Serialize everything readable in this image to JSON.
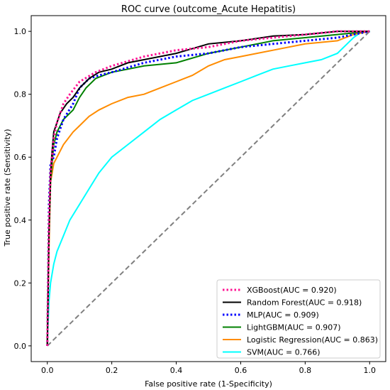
{
  "chart_data": {
    "type": "line",
    "title": "ROC curve (outcome_Acute Hepatitis)",
    "xlabel": "False positive rate (1-Specificity)",
    "ylabel": "True positive rate (Sensitivity)",
    "xlim": [
      -0.05,
      1.05
    ],
    "ylim": [
      -0.05,
      1.05
    ],
    "xticks": [
      "0.0",
      "0.2",
      "0.4",
      "0.6",
      "0.8",
      "1.0"
    ],
    "yticks": [
      "0.0",
      "0.2",
      "0.4",
      "0.6",
      "0.8",
      "1.0"
    ],
    "legend_position": "lower-right",
    "diagonal": {
      "x": [
        0,
        1
      ],
      "y": [
        0,
        1
      ],
      "color": "#808080",
      "style": "dashed"
    },
    "series": [
      {
        "name": "XGBoost(AUC = 0.920)",
        "color": "#ff1493",
        "style": "dotted",
        "x": [
          0,
          0.005,
          0.01,
          0.015,
          0.02,
          0.03,
          0.04,
          0.05,
          0.07,
          0.1,
          0.15,
          0.2,
          0.3,
          0.4,
          0.5,
          0.6,
          0.7,
          0.8,
          0.9,
          1.0
        ],
        "y": [
          0,
          0.4,
          0.55,
          0.6,
          0.66,
          0.71,
          0.74,
          0.77,
          0.8,
          0.84,
          0.87,
          0.89,
          0.92,
          0.94,
          0.95,
          0.97,
          0.98,
          0.99,
          1.0,
          1.0
        ]
      },
      {
        "name": "Random Forest(AUC = 0.918)",
        "color": "#000000",
        "style": "solid",
        "x": [
          0,
          0.005,
          0.01,
          0.015,
          0.02,
          0.03,
          0.04,
          0.06,
          0.08,
          0.1,
          0.13,
          0.16,
          0.2,
          0.25,
          0.3,
          0.4,
          0.5,
          0.6,
          0.7,
          0.8,
          0.9,
          1.0
        ],
        "y": [
          0,
          0.35,
          0.55,
          0.62,
          0.68,
          0.71,
          0.74,
          0.77,
          0.79,
          0.82,
          0.85,
          0.87,
          0.88,
          0.9,
          0.91,
          0.93,
          0.96,
          0.97,
          0.985,
          0.99,
          1.0,
          1.0
        ]
      },
      {
        "name": "MLP(AUC = 0.909)",
        "color": "#0000ff",
        "style": "dotted",
        "x": [
          0,
          0.005,
          0.01,
          0.02,
          0.03,
          0.05,
          0.08,
          0.1,
          0.13,
          0.16,
          0.2,
          0.3,
          0.4,
          0.5,
          0.6,
          0.7,
          0.8,
          0.9,
          0.95,
          1.0
        ],
        "y": [
          0,
          0.45,
          0.58,
          0.6,
          0.66,
          0.72,
          0.77,
          0.82,
          0.85,
          0.86,
          0.87,
          0.9,
          0.92,
          0.93,
          0.95,
          0.96,
          0.97,
          0.98,
          0.99,
          1.0
        ]
      },
      {
        "name": "LightGBM(AUC = 0.907)",
        "color": "#008000",
        "style": "solid",
        "x": [
          0,
          0.005,
          0.01,
          0.015,
          0.02,
          0.03,
          0.05,
          0.08,
          0.1,
          0.12,
          0.15,
          0.2,
          0.25,
          0.3,
          0.4,
          0.5,
          0.6,
          0.7,
          0.8,
          0.9,
          1.0
        ],
        "y": [
          0,
          0.35,
          0.52,
          0.58,
          0.64,
          0.68,
          0.72,
          0.75,
          0.79,
          0.82,
          0.85,
          0.87,
          0.88,
          0.89,
          0.9,
          0.93,
          0.95,
          0.97,
          0.98,
          0.99,
          1.0
        ]
      },
      {
        "name": "Logistic Regression(AUC = 0.863)",
        "color": "#ff8c00",
        "style": "solid",
        "x": [
          0,
          0.005,
          0.01,
          0.02,
          0.03,
          0.05,
          0.08,
          0.1,
          0.13,
          0.16,
          0.2,
          0.25,
          0.3,
          0.35,
          0.4,
          0.45,
          0.5,
          0.55,
          0.6,
          0.7,
          0.8,
          0.9,
          0.95,
          1.0
        ],
        "y": [
          0,
          0.3,
          0.52,
          0.58,
          0.6,
          0.64,
          0.68,
          0.7,
          0.73,
          0.75,
          0.77,
          0.79,
          0.8,
          0.82,
          0.84,
          0.86,
          0.89,
          0.91,
          0.92,
          0.94,
          0.96,
          0.97,
          0.99,
          1.0
        ]
      },
      {
        "name": "SVM(AUC = 0.766)",
        "color": "#00ffff",
        "style": "solid",
        "x": [
          0,
          0.005,
          0.01,
          0.02,
          0.03,
          0.05,
          0.07,
          0.1,
          0.13,
          0.16,
          0.2,
          0.25,
          0.3,
          0.35,
          0.4,
          0.45,
          0.5,
          0.55,
          0.6,
          0.65,
          0.7,
          0.75,
          0.8,
          0.85,
          0.9,
          0.93,
          0.95,
          0.97,
          1.0
        ],
        "y": [
          0,
          0.14,
          0.2,
          0.26,
          0.3,
          0.35,
          0.4,
          0.45,
          0.5,
          0.55,
          0.6,
          0.64,
          0.68,
          0.72,
          0.75,
          0.78,
          0.8,
          0.82,
          0.84,
          0.86,
          0.88,
          0.89,
          0.9,
          0.91,
          0.93,
          0.96,
          0.98,
          0.995,
          1.0
        ]
      }
    ]
  }
}
